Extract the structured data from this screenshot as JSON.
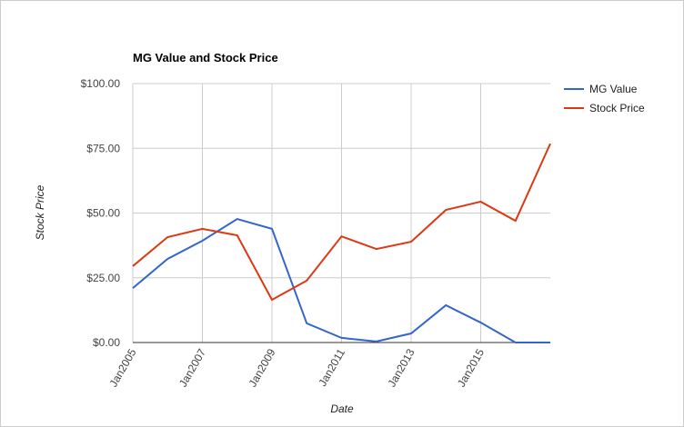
{
  "chart_data": {
    "type": "line",
    "title": "MG Value and Stock Price",
    "x_label": "Date",
    "y_label": "Stock Price",
    "x": [
      2005,
      2006,
      2007,
      2008,
      2009,
      2010,
      2011,
      2012,
      2013,
      2014,
      2015,
      2016,
      2017
    ],
    "series": [
      {
        "name": "MG Value",
        "color": "#3366cc",
        "values": [
          21,
          32.3,
          39.3,
          47.7,
          43.9,
          7.4,
          1.8,
          0.4,
          3.5,
          14.4,
          7.7,
          0,
          0
        ]
      },
      {
        "name": "Stock Price",
        "color": "#dc3912",
        "values": [
          29.5,
          40.7,
          43.9,
          41.4,
          16.5,
          23.9,
          41,
          36.1,
          38.9,
          51.2,
          54.4,
          47,
          76.8
        ]
      }
    ],
    "xlim": [
      2005,
      2017
    ],
    "xticks": [
      {
        "value": 2005,
        "label": "Jan2005"
      },
      {
        "value": 2007,
        "label": "Jan2007"
      },
      {
        "value": 2009,
        "label": "Jan2009"
      },
      {
        "value": 2011,
        "label": "Jan2011"
      },
      {
        "value": 2013,
        "label": "Jan2013"
      },
      {
        "value": 2015,
        "label": "Jan2015"
      }
    ],
    "ylim": [
      0,
      100
    ],
    "yticks": [
      {
        "value": 0,
        "label": "$0.00"
      },
      {
        "value": 25,
        "label": "$25.00"
      },
      {
        "value": 50,
        "label": "$50.00"
      },
      {
        "value": 75,
        "label": "$75.00"
      },
      {
        "value": 100,
        "label": "$100.00"
      }
    ],
    "grid": true,
    "legend": "right"
  }
}
